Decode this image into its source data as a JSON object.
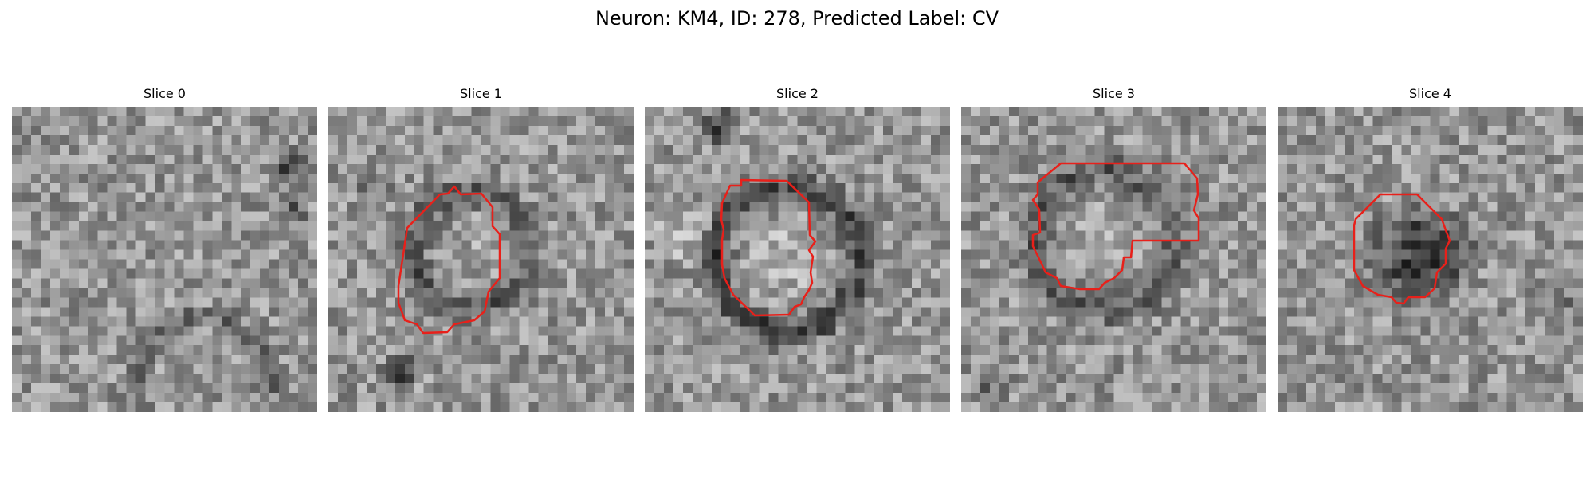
{
  "figure": {
    "title": "Neuron: KM4, ID: 278, Predicted Label: CV"
  },
  "colors": {
    "contour": "#e8201a",
    "background": "#ffffff"
  },
  "slices": [
    {
      "title": "Slice 0",
      "has_contour": false
    },
    {
      "title": "Slice 1",
      "has_contour": true
    },
    {
      "title": "Slice 2",
      "has_contour": true
    },
    {
      "title": "Slice 3",
      "has_contour": true
    },
    {
      "title": "Slice 4",
      "has_contour": true
    }
  ]
}
